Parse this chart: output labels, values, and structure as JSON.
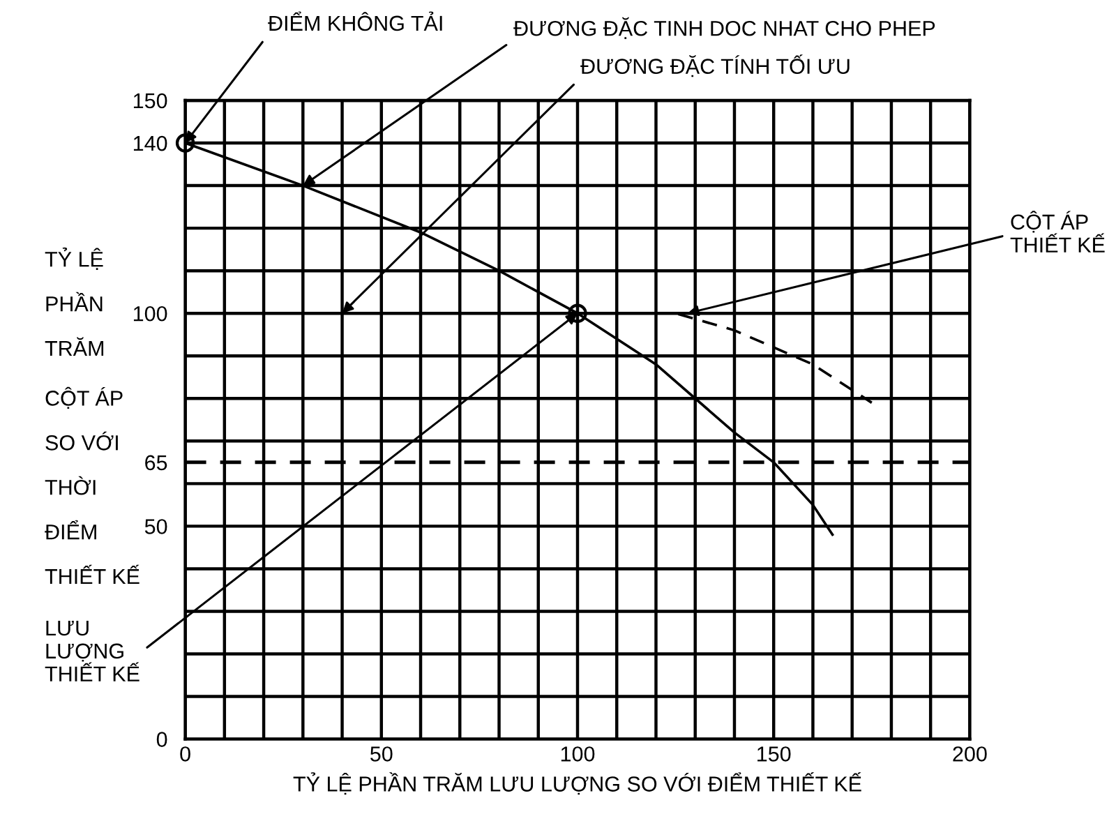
{
  "chart_data": {
    "type": "line",
    "xlabel": "TỶ LỆ PHẦN TRĂM LƯU LƯỢNG SO VỚI ĐIỂM THIẾT KẾ",
    "ylabel": "TỶ LỆ\nPHẦN\nTRĂM\nCỘT ÁP\nSO VỚI\nTHỜI\nĐIỂM\nTHIẾT KẾ",
    "xlim": [
      0,
      200
    ],
    "ylim": [
      0,
      150
    ],
    "xticks": [
      0,
      {
        "value": 10,
        "label": null
      },
      {
        "value": 20,
        "label": null
      },
      {
        "value": 30,
        "label": null
      },
      {
        "value": 40,
        "label": null
      },
      50,
      {
        "value": 60,
        "label": null
      },
      {
        "value": 70,
        "label": null
      },
      {
        "value": 80,
        "label": null
      },
      {
        "value": 90,
        "label": null
      },
      100,
      {
        "value": 110,
        "label": null
      },
      {
        "value": 120,
        "label": null
      },
      {
        "value": 130,
        "label": null
      },
      {
        "value": 140,
        "label": null
      },
      150,
      {
        "value": 160,
        "label": null
      },
      {
        "value": 170,
        "label": null
      },
      {
        "value": 180,
        "label": null
      },
      {
        "value": 190,
        "label": null
      },
      200
    ],
    "yticks": [
      0,
      {
        "value": 10,
        "label": null
      },
      {
        "value": 20,
        "label": null
      },
      {
        "value": 30,
        "label": null
      },
      {
        "value": 40,
        "label": null
      },
      50,
      {
        "value": 60,
        "label": null
      },
      65,
      {
        "value": 70,
        "label": null
      },
      {
        "value": 80,
        "label": null
      },
      {
        "value": 90,
        "label": null
      },
      100,
      {
        "value": 110,
        "label": null
      },
      {
        "value": 120,
        "label": null
      },
      {
        "value": 130,
        "label": null
      },
      140,
      150
    ],
    "grid": true,
    "series": [
      {
        "color": "#000000",
        "line_style": "solid",
        "marker": "none",
        "x": [
          0,
          30,
          60,
          80,
          100,
          120,
          140,
          150,
          160,
          165
        ],
        "values": [
          140,
          130,
          119,
          110,
          100,
          88,
          72,
          65,
          55,
          48
        ]
      },
      {
        "color": "#000000",
        "line_style": "dashed",
        "marker": "none",
        "x": [
          35,
          45,
          50,
          100,
          125,
          140,
          160,
          175
        ],
        "values": [
          100,
          100,
          null,
          100,
          100,
          96,
          88,
          79
        ]
      },
      {
        "type": "scatter",
        "color": "#000000",
        "marker": "circle",
        "x": [
          0,
          100
        ],
        "values": [
          140,
          100
        ]
      }
    ],
    "ref_lines": [
      {
        "axis": "y",
        "value": 65,
        "line_style": "dashed",
        "color": "#000000"
      }
    ],
    "annotations": [
      {
        "text": "ĐIỂM KHÔNG TẢI",
        "x": 0,
        "y": 140
      },
      {
        "text": "ĐƯƠNG ĐẶC TINH DOC NHAT CHO PHEP",
        "x": 30,
        "y": 130
      },
      {
        "text": "ĐƯƠNG ĐẶC TÍNH TỐI ƯU",
        "x": 40,
        "y": 100
      },
      {
        "text": "CỘT ÁP\nTHIẾT KẾ",
        "x": 128,
        "y": 100
      },
      {
        "text": "LƯU\nLƯỢNG\nTHIẾT KẾ",
        "x": 100,
        "y": 100
      }
    ]
  }
}
